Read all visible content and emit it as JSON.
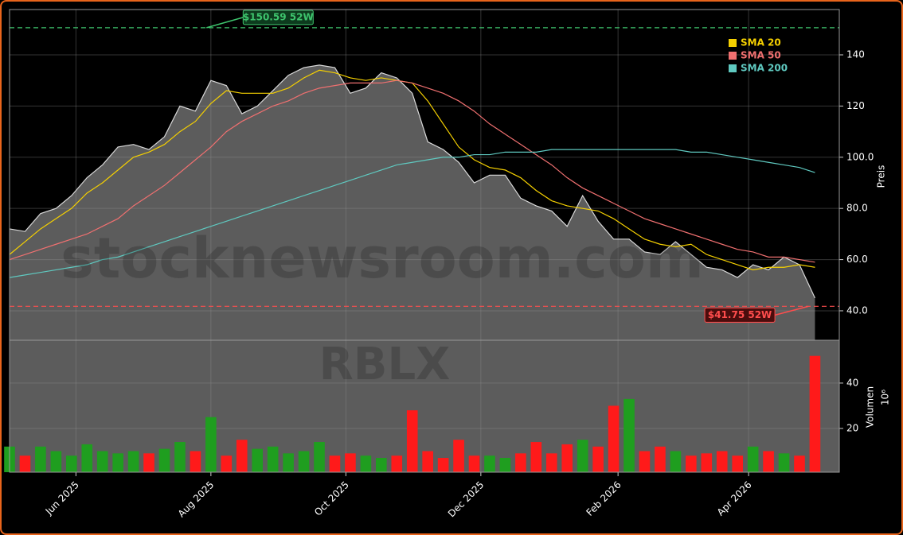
{
  "chart_data": {
    "type": "stock",
    "watermark": "stocknewsroom.com",
    "symbol": "RBLX",
    "ylabel": "Preis",
    "volume_ylabel": "Volumen",
    "volume_exponent": "10⁶",
    "x": [
      0,
      7,
      14,
      21,
      28,
      35,
      42,
      49,
      56,
      63,
      70,
      77,
      84,
      91,
      98,
      105,
      112,
      119,
      126,
      133,
      140,
      147,
      154,
      161,
      168,
      175,
      182,
      189,
      196,
      203,
      210,
      217,
      224,
      231,
      238,
      245,
      252,
      259,
      266,
      273,
      280,
      287,
      294,
      301,
      308,
      315,
      322,
      329,
      336,
      343,
      350,
      357,
      364
    ],
    "xlim": [
      0,
      375
    ],
    "xticks": [
      {
        "value": 30,
        "label": "Jun 2025"
      },
      {
        "value": 91,
        "label": "Aug 2025"
      },
      {
        "value": 152,
        "label": "Oct 2025"
      },
      {
        "value": 213,
        "label": "Dec 2025"
      },
      {
        "value": 275,
        "label": "Feb 2026"
      },
      {
        "value": 334,
        "label": "Apr 2026"
      }
    ],
    "ylim": [
      28.5,
      157.7
    ],
    "yticks": [
      {
        "value": 40,
        "label": "40.0"
      },
      {
        "value": 60,
        "label": "60.0"
      },
      {
        "value": 80,
        "label": "80.0"
      },
      {
        "value": 100,
        "label": "100.0"
      },
      {
        "value": 120,
        "label": "120"
      },
      {
        "value": 140,
        "label": "140"
      }
    ],
    "grid": true,
    "price": {
      "color": "#d9d9d9",
      "fill": "#5c5c5c",
      "values": [
        72,
        71,
        78,
        80,
        85,
        92,
        97,
        104,
        105,
        103,
        108,
        120,
        118,
        130,
        128,
        117,
        120,
        126,
        132,
        135,
        136,
        135,
        125,
        127,
        133,
        131,
        125,
        106,
        103,
        98,
        90,
        93,
        93,
        84,
        81,
        79,
        73,
        85,
        75,
        68,
        68,
        63,
        62,
        67,
        62,
        57,
        56,
        53,
        58,
        56,
        61,
        58,
        45
      ]
    },
    "series": [
      {
        "name": "SMA 20",
        "color": "#f5d000",
        "values": [
          62,
          67,
          72,
          76,
          80,
          86,
          90,
          95,
          100,
          102,
          105,
          110,
          114,
          121,
          126,
          125,
          125,
          125,
          127,
          131,
          134,
          133,
          131,
          130,
          131,
          130,
          129,
          122,
          113,
          104,
          99,
          96,
          95,
          92,
          87,
          83,
          81,
          80,
          79,
          76,
          72,
          68,
          66,
          65,
          66,
          62,
          60,
          58,
          56,
          57,
          57,
          58,
          57
        ]
      },
      {
        "name": "SMA 50",
        "color": "#f07070",
        "values": [
          60,
          62,
          64,
          66,
          68,
          70,
          73,
          76,
          81,
          85,
          89,
          94,
          99,
          104,
          110,
          114,
          117,
          120,
          122,
          125,
          127,
          128,
          129,
          129,
          129,
          130,
          129,
          127,
          125,
          122,
          118,
          113,
          109,
          105,
          101,
          97,
          92,
          88,
          85,
          82,
          79,
          76,
          74,
          72,
          70,
          68,
          66,
          64,
          63,
          61,
          61,
          60,
          59
        ]
      },
      {
        "name": "SMA 200",
        "color": "#5fc9c0",
        "values": [
          53,
          54,
          55,
          56,
          57,
          58,
          60,
          61,
          63,
          65,
          67,
          69,
          71,
          73,
          75,
          77,
          79,
          81,
          83,
          85,
          87,
          89,
          91,
          93,
          95,
          97,
          98,
          99,
          100,
          100,
          101,
          101,
          102,
          102,
          102,
          103,
          103,
          103,
          103,
          103,
          103,
          103,
          103,
          103,
          102,
          102,
          101,
          100,
          99,
          98,
          97,
          96,
          94
        ]
      }
    ],
    "legend": "upper right",
    "volume": {
      "up_color": "#1f9e1f",
      "down_color": "#ff1a1a",
      "ylim": [
        0.7,
        58.9
      ],
      "yticks": [
        20,
        40
      ],
      "values": [
        12,
        8,
        12,
        10,
        8,
        13,
        10,
        9,
        10,
        9,
        11,
        14,
        10,
        25,
        8,
        15,
        11,
        12,
        9,
        10,
        14,
        8,
        9,
        8,
        7,
        8,
        28,
        10,
        7,
        15,
        8,
        8,
        7,
        9,
        14,
        9,
        13,
        15,
        12,
        30,
        33,
        10,
        12,
        10,
        8,
        9,
        10,
        8,
        12,
        10,
        9,
        8,
        52
      ]
    },
    "hlines": [
      {
        "value": 150.59,
        "x": 89,
        "label": "$150.59 52W",
        "color": "#3ec46d"
      },
      {
        "value": 41.75,
        "x": 361,
        "label": "$41.75 52W",
        "color": "#ff4d4d"
      }
    ]
  }
}
